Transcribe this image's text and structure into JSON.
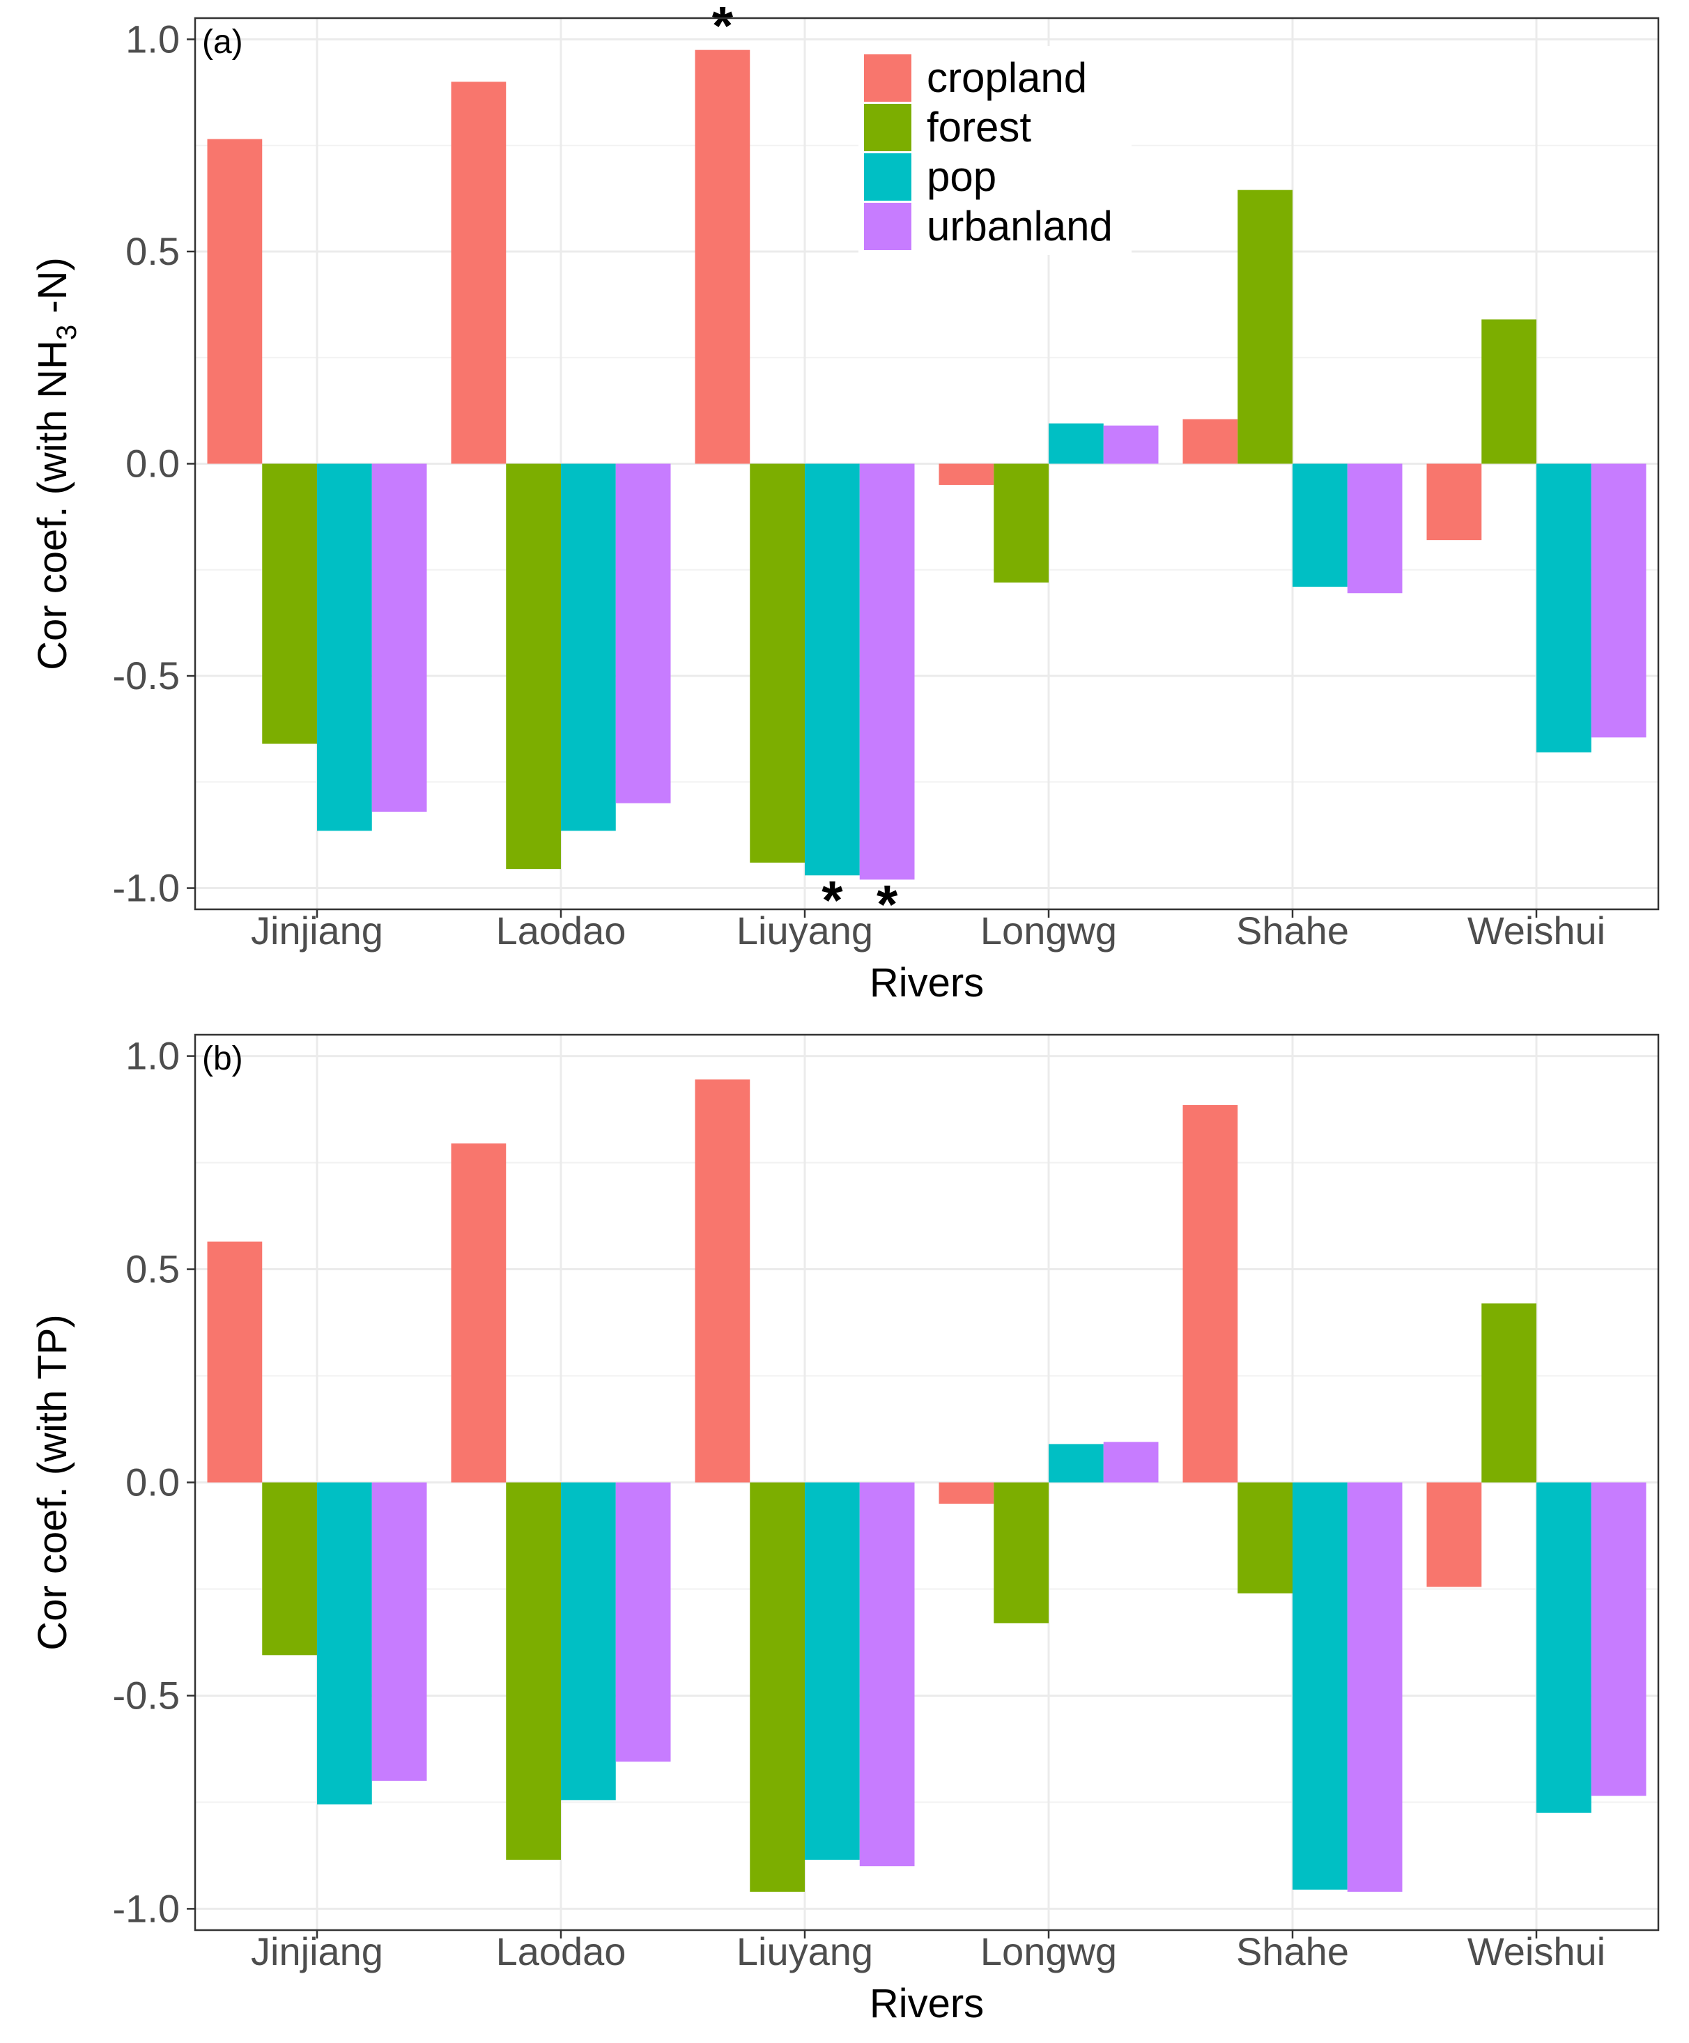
{
  "chart_data": [
    {
      "type": "bar",
      "panel_label": "(a)",
      "ylabel_parts": [
        "Cor coef. (with  NH",
        "3",
        " -N)"
      ],
      "xlabel": "Rivers",
      "categories": [
        "Jinjiang",
        "Laodao",
        "Liuyang",
        "Longwg",
        "Shahe",
        "Weishui"
      ],
      "ylim": [
        -1.05,
        1.05
      ],
      "yticks": [
        -1.0,
        -0.5,
        0.0,
        0.5,
        1.0
      ],
      "ytick_labels": [
        "-1.0",
        "-0.5",
        "0.0",
        "0.5",
        "1.0"
      ],
      "grid": true,
      "legend_position": "top-center",
      "series": [
        {
          "name": "cropland",
          "color": "#F8766D",
          "values": [
            0.765,
            0.9,
            0.975,
            -0.05,
            0.105,
            -0.18
          ]
        },
        {
          "name": "forest",
          "color": "#7CAE00",
          "values": [
            -0.66,
            -0.955,
            -0.94,
            -0.28,
            0.645,
            0.34
          ]
        },
        {
          "name": "pop",
          "color": "#00BFC4",
          "values": [
            -0.865,
            -0.865,
            -0.97,
            0.095,
            -0.29,
            -0.68
          ]
        },
        {
          "name": "urbanland",
          "color": "#C77CFF",
          "values": [
            -0.82,
            -0.8,
            -0.98,
            0.09,
            -0.305,
            -0.645
          ]
        }
      ],
      "annotations": [
        {
          "text": "*",
          "series": "cropland",
          "category": "Liuyang"
        },
        {
          "text": "*",
          "series": "pop",
          "category": "Liuyang"
        },
        {
          "text": "*",
          "series": "urbanland",
          "category": "Liuyang"
        }
      ]
    },
    {
      "type": "bar",
      "panel_label": "(b)",
      "ylabel_parts": [
        "Cor coef. (with TP)"
      ],
      "xlabel": "Rivers",
      "categories": [
        "Jinjiang",
        "Laodao",
        "Liuyang",
        "Longwg",
        "Shahe",
        "Weishui"
      ],
      "ylim": [
        -1.05,
        1.05
      ],
      "yticks": [
        -1.0,
        -0.5,
        0.0,
        0.5,
        1.0
      ],
      "ytick_labels": [
        "-1.0",
        "-0.5",
        "0.0",
        "0.5",
        "1.0"
      ],
      "grid": true,
      "series": [
        {
          "name": "cropland",
          "color": "#F8766D",
          "values": [
            0.565,
            0.795,
            0.945,
            -0.05,
            0.885,
            -0.245
          ]
        },
        {
          "name": "forest",
          "color": "#7CAE00",
          "values": [
            -0.405,
            -0.885,
            -0.96,
            -0.33,
            -0.26,
            0.42
          ]
        },
        {
          "name": "pop",
          "color": "#00BFC4",
          "values": [
            -0.755,
            -0.745,
            -0.885,
            0.09,
            -0.955,
            -0.775
          ]
        },
        {
          "name": "urbanland",
          "color": "#C77CFF",
          "values": [
            -0.7,
            -0.655,
            -0.9,
            0.095,
            -0.96,
            -0.735
          ]
        }
      ],
      "annotations": []
    }
  ]
}
